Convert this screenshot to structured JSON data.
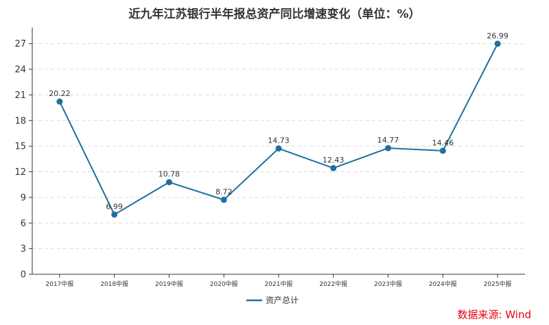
{
  "source_text": "数据来源: Wind",
  "colors": {
    "series": "#1f6f9c",
    "grid": "#d9d9d9",
    "axis": "#333333",
    "source": "#e60012"
  },
  "chart_data": {
    "type": "line",
    "title": "近九年江苏银行半年报总资产同比增速变化（单位：%）",
    "categories": [
      "2017中报",
      "2018中报",
      "2019中报",
      "2020中报",
      "2021中报",
      "2022中报",
      "2023中报",
      "2024中报",
      "2025中报"
    ],
    "series": [
      {
        "name": "资产总计",
        "values": [
          20.22,
          6.99,
          10.78,
          8.72,
          14.73,
          12.43,
          14.77,
          14.46,
          26.99
        ]
      }
    ],
    "y_ticks": [
      0,
      3,
      6,
      9,
      12,
      15,
      18,
      21,
      24,
      27
    ],
    "ylim": [
      0,
      28.5
    ],
    "grid": true,
    "legend_position": "bottom-center"
  }
}
